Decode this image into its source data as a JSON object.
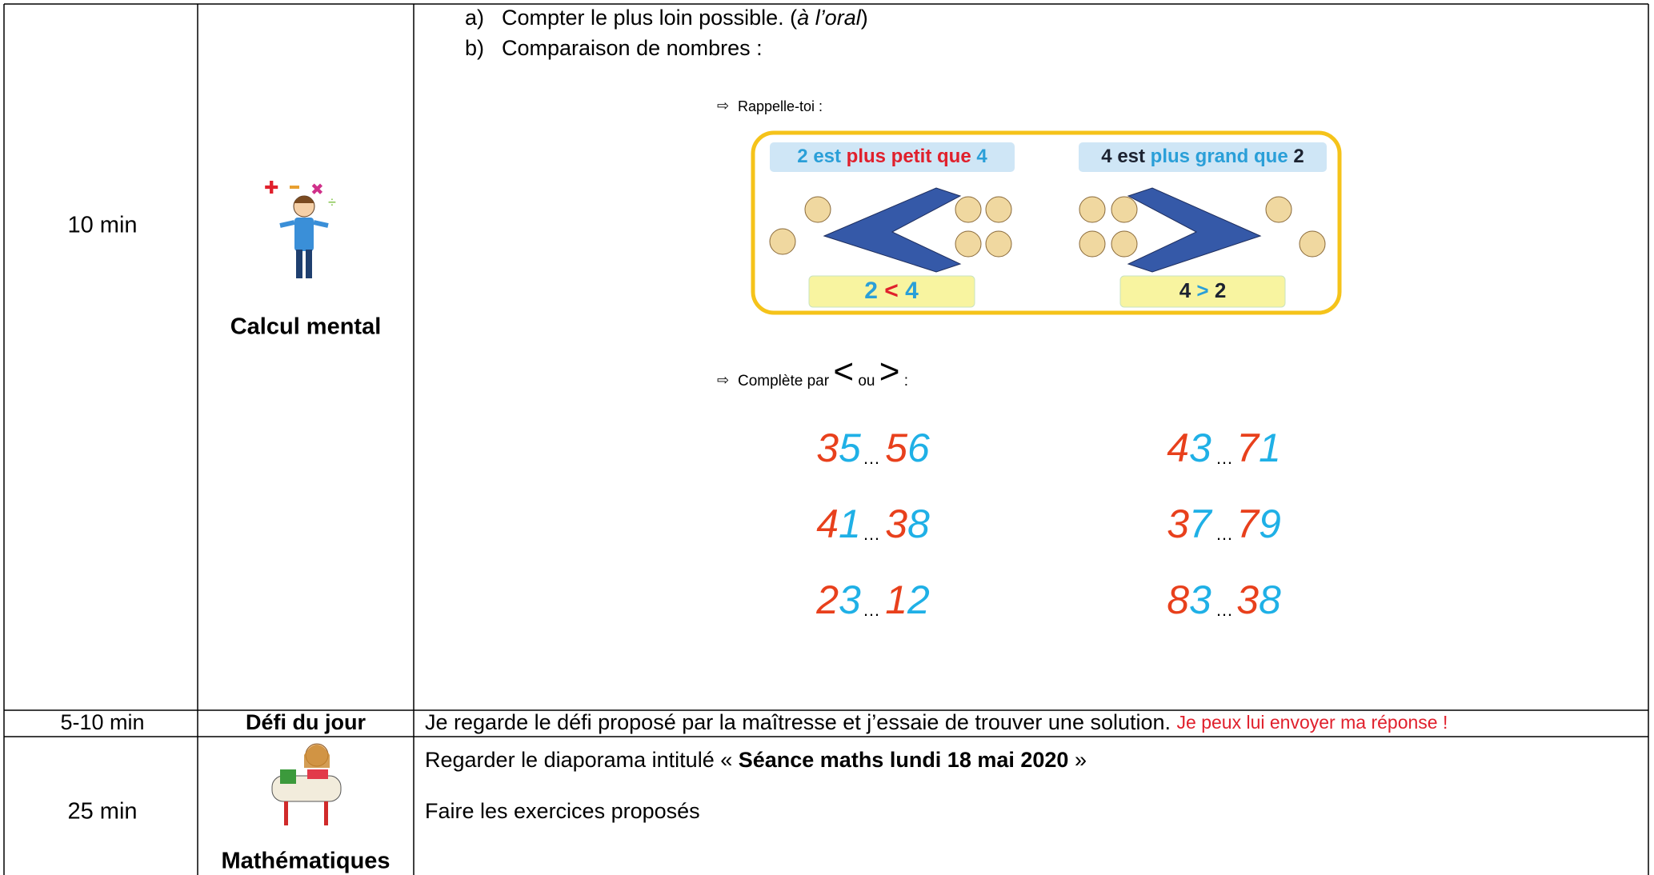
{
  "rows": [
    {
      "duration": "10 min",
      "activity": "Calcul mental",
      "content": {
        "items": [
          {
            "marker": "a)",
            "parts": [
              "Compter le plus loin possible. (",
              "à l’oral",
              ")"
            ]
          },
          {
            "marker": "b)",
            "parts": [
              "Comparaison de nombres :"
            ]
          }
        ],
        "reminder": {
          "label": "Rappelle-toi :",
          "left": {
            "title": [
              "2 est ",
              "plus petit que",
              " 4"
            ],
            "sign": [
              "2 ",
              "<",
              " 4"
            ]
          },
          "right": {
            "title": [
              "4 est ",
              "plus grand que",
              " 2"
            ],
            "sign": [
              "4 ",
              ">",
              " 2"
            ]
          }
        },
        "instruction": [
          "Complète par",
          "<",
          "ou",
          ">",
          ":"
        ],
        "exercises": {
          "separator": "…",
          "pairs": [
            [
              "35",
              "56"
            ],
            [
              "43",
              "71"
            ],
            [
              "41",
              "38"
            ],
            [
              "37",
              "79"
            ],
            [
              "23",
              "12"
            ],
            [
              "83",
              "38"
            ]
          ]
        }
      }
    },
    {
      "duration": "5-10 min",
      "activity": "Défi du jour",
      "content": {
        "text": "Je regarde le défi proposé par la maîtresse et j’essaie de trouver une solution.",
        "note": "Je peux lui envoyer ma réponse !"
      }
    },
    {
      "duration": "25 min",
      "activity": "Mathématiques",
      "content": {
        "line1": [
          "Regarder le diaporama intitulé « ",
          "Séance maths lundi 18 mai 2020",
          " »"
        ],
        "line2": "Faire les exercices proposés"
      }
    }
  ]
}
